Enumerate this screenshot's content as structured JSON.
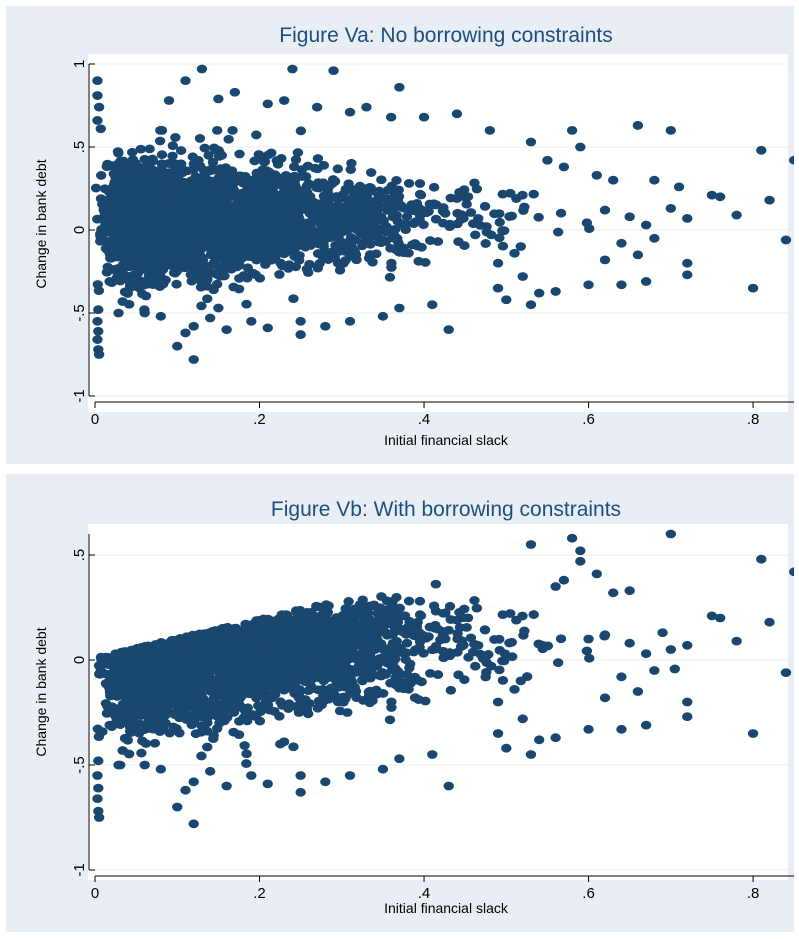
{
  "chart_data": [
    {
      "type": "scatter",
      "title": "Figure Va: No borrowing constraints",
      "xlabel": "Initial financial slack",
      "ylabel": "Change in bank debt",
      "xlim": [
        0,
        0.85
      ],
      "ylim": [
        -1,
        1
      ],
      "x_ticks": [
        "0",
        ".2",
        ".4",
        ".6",
        ".8"
      ],
      "y_ticks": [
        "-1",
        "-.5",
        "0",
        ".5",
        "1"
      ],
      "grid": true,
      "marker_color": "#1a476f",
      "points": [
        [
          0.003,
          0.9
        ],
        [
          0.003,
          0.81
        ],
        [
          0.005,
          0.74
        ],
        [
          0.003,
          0.66
        ],
        [
          0.007,
          0.61
        ],
        [
          0.004,
          -0.48
        ],
        [
          0.003,
          -0.55
        ],
        [
          0.004,
          -0.61
        ],
        [
          0.003,
          -0.66
        ],
        [
          0.004,
          -0.72
        ],
        [
          0.005,
          -0.75
        ],
        [
          0.13,
          0.97
        ],
        [
          0.24,
          0.97
        ],
        [
          0.29,
          0.96
        ],
        [
          0.11,
          0.9
        ],
        [
          0.37,
          0.86
        ],
        [
          0.09,
          0.78
        ],
        [
          0.15,
          0.79
        ],
        [
          0.17,
          0.83
        ],
        [
          0.23,
          0.78
        ],
        [
          0.21,
          0.76
        ],
        [
          0.27,
          0.74
        ],
        [
          0.33,
          0.74
        ],
        [
          0.31,
          0.71
        ],
        [
          0.44,
          0.7
        ],
        [
          0.4,
          0.68
        ],
        [
          0.36,
          0.68
        ],
        [
          0.48,
          0.6
        ],
        [
          0.53,
          0.53
        ],
        [
          0.58,
          0.6
        ],
        [
          0.66,
          0.63
        ],
        [
          0.7,
          0.6
        ],
        [
          0.59,
          0.5
        ],
        [
          0.55,
          0.42
        ],
        [
          0.57,
          0.38
        ],
        [
          0.61,
          0.33
        ],
        [
          0.63,
          0.3
        ],
        [
          0.68,
          0.3
        ],
        [
          0.71,
          0.26
        ],
        [
          0.75,
          0.21
        ],
        [
          0.76,
          0.2
        ],
        [
          0.81,
          0.48
        ],
        [
          0.85,
          0.42
        ],
        [
          0.82,
          0.18
        ],
        [
          0.78,
          0.09
        ],
        [
          0.7,
          0.13
        ],
        [
          0.72,
          0.07
        ],
        [
          0.67,
          0.03
        ],
        [
          0.65,
          0.08
        ],
        [
          0.62,
          0.12
        ],
        [
          0.68,
          -0.05
        ],
        [
          0.64,
          -0.08
        ],
        [
          0.66,
          -0.15
        ],
        [
          0.62,
          -0.18
        ],
        [
          0.72,
          -0.2
        ],
        [
          0.72,
          -0.27
        ],
        [
          0.67,
          -0.31
        ],
        [
          0.64,
          -0.33
        ],
        [
          0.6,
          -0.33
        ],
        [
          0.8,
          -0.35
        ],
        [
          0.84,
          -0.06
        ],
        [
          0.56,
          -0.37
        ],
        [
          0.54,
          -0.38
        ],
        [
          0.53,
          -0.45
        ],
        [
          0.5,
          -0.42
        ],
        [
          0.49,
          -0.35
        ],
        [
          0.49,
          -0.2
        ],
        [
          0.52,
          -0.28
        ],
        [
          0.51,
          -0.14
        ],
        [
          0.43,
          -0.6
        ],
        [
          0.41,
          -0.45
        ],
        [
          0.37,
          -0.47
        ],
        [
          0.35,
          -0.52
        ],
        [
          0.31,
          -0.55
        ],
        [
          0.28,
          -0.58
        ],
        [
          0.25,
          -0.63
        ],
        [
          0.25,
          -0.55
        ],
        [
          0.21,
          -0.59
        ],
        [
          0.19,
          -0.55
        ],
        [
          0.16,
          -0.6
        ],
        [
          0.14,
          -0.53
        ],
        [
          0.12,
          -0.58
        ],
        [
          0.11,
          -0.62
        ],
        [
          0.1,
          -0.7
        ],
        [
          0.12,
          -0.78
        ],
        [
          0.08,
          -0.52
        ],
        [
          0.06,
          -0.48
        ],
        [
          0.15,
          -0.47
        ]
      ]
    },
    {
      "type": "scatter",
      "title": "Figure Vb: With borrowing constraints",
      "xlabel": "Initial financial slack",
      "ylabel": "Change in bank debt",
      "xlim": [
        0,
        0.85
      ],
      "ylim": [
        -1,
        0.6
      ],
      "x_ticks": [
        "0",
        ".2",
        ".4",
        ".6",
        ".8"
      ],
      "y_ticks": [
        "-1",
        "-.5",
        "0",
        ".5"
      ],
      "grid": true,
      "marker_color": "#1a476f",
      "points": [
        [
          0.67,
          0.63
        ],
        [
          0.7,
          0.6
        ],
        [
          0.58,
          0.58
        ],
        [
          0.59,
          0.52
        ],
        [
          0.53,
          0.55
        ],
        [
          0.59,
          0.47
        ],
        [
          0.61,
          0.41
        ],
        [
          0.57,
          0.38
        ],
        [
          0.63,
          0.32
        ],
        [
          0.65,
          0.33
        ],
        [
          0.56,
          0.35
        ],
        [
          0.81,
          0.48
        ],
        [
          0.85,
          0.42
        ],
        [
          0.75,
          0.21
        ],
        [
          0.76,
          0.2
        ],
        [
          0.82,
          0.18
        ],
        [
          0.78,
          0.09
        ],
        [
          0.72,
          0.07
        ],
        [
          0.69,
          0.13
        ],
        [
          0.7,
          0.05
        ],
        [
          0.67,
          0.03
        ],
        [
          0.65,
          0.08
        ],
        [
          0.62,
          0.12
        ],
        [
          0.6,
          0.1
        ],
        [
          0.68,
          -0.05
        ],
        [
          0.64,
          -0.08
        ],
        [
          0.66,
          -0.15
        ],
        [
          0.62,
          -0.18
        ],
        [
          0.72,
          -0.2
        ],
        [
          0.72,
          -0.27
        ],
        [
          0.67,
          -0.31
        ],
        [
          0.64,
          -0.33
        ],
        [
          0.6,
          -0.33
        ],
        [
          0.8,
          -0.35
        ],
        [
          0.84,
          -0.06
        ],
        [
          0.56,
          -0.37
        ],
        [
          0.54,
          -0.38
        ],
        [
          0.53,
          -0.45
        ],
        [
          0.5,
          -0.42
        ],
        [
          0.49,
          -0.35
        ],
        [
          0.49,
          -0.2
        ],
        [
          0.52,
          -0.28
        ],
        [
          0.51,
          -0.14
        ],
        [
          0.43,
          -0.6
        ],
        [
          0.41,
          -0.45
        ],
        [
          0.37,
          -0.47
        ],
        [
          0.35,
          -0.52
        ],
        [
          0.31,
          -0.55
        ],
        [
          0.28,
          -0.58
        ],
        [
          0.25,
          -0.63
        ],
        [
          0.25,
          -0.55
        ],
        [
          0.21,
          -0.59
        ],
        [
          0.19,
          -0.55
        ],
        [
          0.16,
          -0.6
        ],
        [
          0.14,
          -0.53
        ],
        [
          0.12,
          -0.58
        ],
        [
          0.11,
          -0.62
        ],
        [
          0.1,
          -0.7
        ],
        [
          0.12,
          -0.78
        ],
        [
          0.08,
          -0.52
        ],
        [
          0.004,
          -0.48
        ],
        [
          0.003,
          -0.55
        ],
        [
          0.004,
          -0.61
        ],
        [
          0.003,
          -0.66
        ],
        [
          0.004,
          -0.72
        ],
        [
          0.005,
          -0.75
        ]
      ]
    }
  ]
}
